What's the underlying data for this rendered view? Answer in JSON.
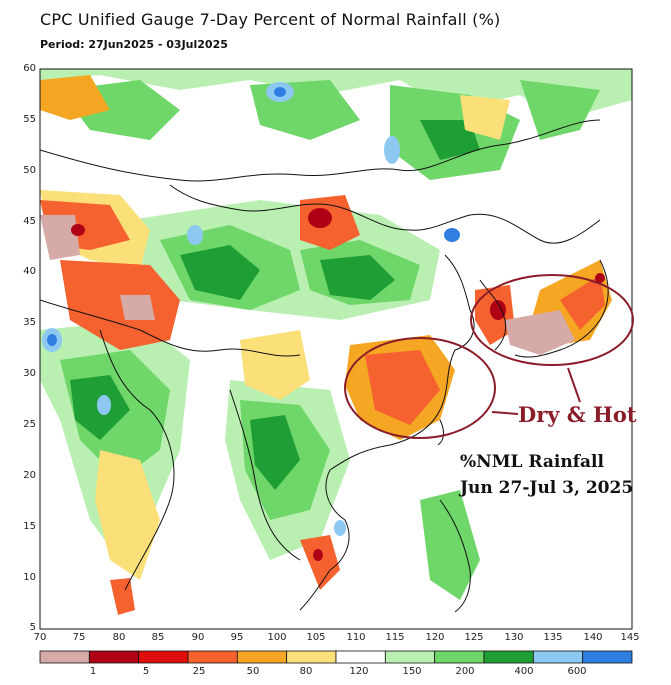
{
  "header": {
    "title": "CPC Unified Gauge 7-Day Percent of Normal Rainfall (%)",
    "period": "Period: 27Jun2025 - 03Jul2025"
  },
  "axes": {
    "lat_ticks": [
      "60",
      "55",
      "50",
      "45",
      "40",
      "35",
      "30",
      "25",
      "20",
      "15",
      "10",
      "5"
    ],
    "lon_ticks": [
      "70",
      "75",
      "80",
      "85",
      "90",
      "95",
      "100",
      "105",
      "110",
      "115",
      "120",
      "125",
      "130",
      "135",
      "140",
      "145"
    ]
  },
  "colorbar": {
    "labels": [
      "1",
      "5",
      "25",
      "50",
      "80",
      "120",
      "150",
      "200",
      "400",
      "600"
    ],
    "colors": [
      "#d6aaa6",
      "#b00016",
      "#e00d0d",
      "#f5622f",
      "#f5a623",
      "#fbe07a",
      "#ffffff",
      "#b9f0b2",
      "#6fd669",
      "#1e9e35",
      "#8cc8f0",
      "#2f7fe0"
    ]
  },
  "annotations": {
    "dry_hot": "Dry & Hot",
    "note_line1": "%NML Rainfall",
    "note_line2": "Jun 27-Jul 3, 2025",
    "circle_color": "#8b1d2a"
  },
  "map": {
    "lon_range": [
      70,
      145
    ],
    "lat_range": [
      5,
      60
    ]
  }
}
